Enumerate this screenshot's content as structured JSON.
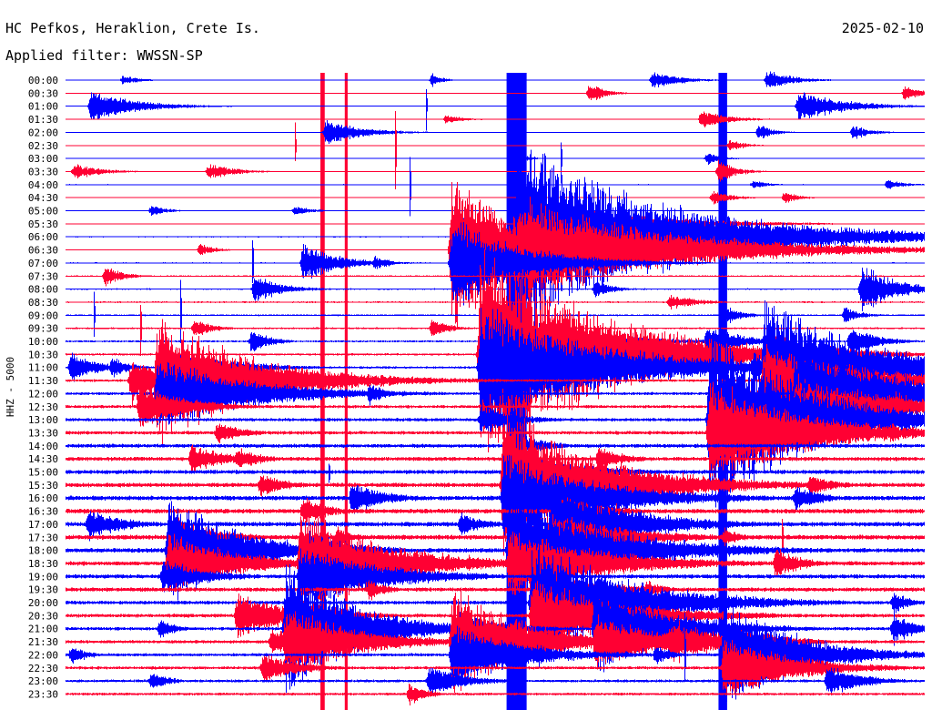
{
  "header": {
    "station": "HC Pefkos, Heraklion, Crete Is.",
    "filter": "Applied filter: WWSSN-SP",
    "date": "2025-02-10"
  },
  "channel_label": "HHZ - 5000",
  "chart_data": {
    "type": "line",
    "title": "HC Pefkos, Heraklion, Crete Is.",
    "subtitle": "Applied filter: WWSSN-SP",
    "date": "2025-02-10",
    "ylabel": "HHZ - 5000",
    "colors": [
      "#0000ff",
      "#ff0033"
    ],
    "rows": [
      "00:00",
      "00:30",
      "01:00",
      "01:30",
      "02:00",
      "02:30",
      "03:00",
      "03:30",
      "04:00",
      "04:30",
      "05:00",
      "05:30",
      "06:00",
      "06:30",
      "07:00",
      "07:30",
      "08:00",
      "08:30",
      "09:00",
      "09:30",
      "10:00",
      "10:30",
      "11:00",
      "11:30",
      "12:00",
      "12:30",
      "13:00",
      "13:30",
      "14:00",
      "14:30",
      "15:00",
      "15:30",
      "16:00",
      "16:30",
      "17:00",
      "17:30",
      "18:00",
      "18:30",
      "19:00",
      "19:30",
      "20:00",
      "20:30",
      "21:00",
      "21:30",
      "22:00",
      "22:30",
      "23:00",
      "23:30"
    ],
    "x_range_minutes": [
      0,
      30
    ],
    "noise": [
      0.5,
      0.5,
      0.5,
      0.5,
      0.5,
      0.5,
      0.5,
      0.5,
      0.6,
      0.6,
      0.6,
      0.6,
      0.7,
      0.7,
      0.8,
      0.8,
      0.9,
      1.0,
      1.0,
      1.1,
      1.2,
      1.3,
      1.4,
      1.5,
      1.7,
      1.8,
      2.0,
      2.1,
      2.3,
      2.4,
      2.5,
      2.6,
      2.7,
      2.8,
      2.8,
      2.8,
      2.7,
      2.6,
      2.5,
      2.4,
      2.3,
      2.2,
      2.0,
      2.0,
      1.9,
      1.8,
      1.7,
      1.6
    ],
    "events": [
      {
        "row": 0,
        "minute": 2.0,
        "amp": 6,
        "dur": 1.0
      },
      {
        "row": 0,
        "minute": 20.5,
        "amp": 12,
        "dur": 1.5
      },
      {
        "row": 0,
        "minute": 24.5,
        "amp": 12,
        "dur": 1.5
      },
      {
        "row": 0,
        "minute": 12.8,
        "amp": 8,
        "dur": 0.6
      },
      {
        "row": 1,
        "minute": 18.3,
        "amp": 14,
        "dur": 0.8
      },
      {
        "row": 1,
        "minute": 29.3,
        "amp": 10,
        "dur": 1.0
      },
      {
        "row": 2,
        "minute": 0.9,
        "amp": 20,
        "dur": 2.5
      },
      {
        "row": 2,
        "minute": 25.6,
        "amp": 20,
        "dur": 2.5
      },
      {
        "row": 3,
        "minute": 13.3,
        "amp": 6,
        "dur": 1.0
      },
      {
        "row": 3,
        "minute": 22.2,
        "amp": 12,
        "dur": 1.5
      },
      {
        "row": 4,
        "minute": 9.1,
        "amp": 16,
        "dur": 2.0
      },
      {
        "row": 4,
        "minute": 24.2,
        "amp": 10,
        "dur": 0.8
      },
      {
        "row": 4,
        "minute": 27.5,
        "amp": 9,
        "dur": 1.0
      },
      {
        "row": 5,
        "minute": 23.2,
        "amp": 8,
        "dur": 0.8
      },
      {
        "row": 6,
        "minute": 22.4,
        "amp": 8,
        "dur": 0.8
      },
      {
        "row": 6,
        "minute": 15.9,
        "amp": 5,
        "dur": 0.6
      },
      {
        "row": 7,
        "minute": 0.3,
        "amp": 10,
        "dur": 1.5
      },
      {
        "row": 7,
        "minute": 5.0,
        "amp": 10,
        "dur": 1.5
      },
      {
        "row": 7,
        "minute": 22.8,
        "amp": 14,
        "dur": 1.0
      },
      {
        "row": 8,
        "minute": 28.7,
        "amp": 6,
        "dur": 1.0
      },
      {
        "row": 8,
        "minute": 24.0,
        "amp": 6,
        "dur": 0.8
      },
      {
        "row": 9,
        "minute": 22.6,
        "amp": 10,
        "dur": 1.0
      },
      {
        "row": 9,
        "minute": 25.1,
        "amp": 8,
        "dur": 0.8
      },
      {
        "row": 10,
        "minute": 8.0,
        "amp": 6,
        "dur": 1.0
      },
      {
        "row": 10,
        "minute": 3.0,
        "amp": 8,
        "dur": 0.8
      },
      {
        "row": 12,
        "minute": 14.2,
        "amp": 8,
        "dur": 0.8
      },
      {
        "row": 13,
        "minute": 4.7,
        "amp": 8,
        "dur": 0.8
      },
      {
        "row": 13,
        "minute": 21.7,
        "amp": 8,
        "dur": 1.0
      },
      {
        "row": 14,
        "minute": 18.3,
        "amp": 8,
        "dur": 0.8
      },
      {
        "row": 14,
        "minute": 10.8,
        "amp": 10,
        "dur": 0.8
      },
      {
        "row": 14,
        "minute": 8.3,
        "amp": 24,
        "dur": 2.0
      },
      {
        "row": 15,
        "minute": 1.4,
        "amp": 12,
        "dur": 1.0
      },
      {
        "row": 16,
        "minute": 6.6,
        "amp": 18,
        "dur": 1.5
      },
      {
        "row": 16,
        "minute": 18.5,
        "amp": 12,
        "dur": 1.0
      },
      {
        "row": 16,
        "minute": 27.8,
        "amp": 30,
        "dur": 2.0
      },
      {
        "row": 17,
        "minute": 21.1,
        "amp": 10,
        "dur": 1.5
      },
      {
        "row": 18,
        "minute": 23.0,
        "amp": 12,
        "dur": 1.0
      },
      {
        "row": 18,
        "minute": 27.2,
        "amp": 10,
        "dur": 1.0
      },
      {
        "row": 19,
        "minute": 4.5,
        "amp": 12,
        "dur": 1.0
      },
      {
        "row": 19,
        "minute": 12.8,
        "amp": 12,
        "dur": 1.0
      },
      {
        "row": 20,
        "minute": 6.5,
        "amp": 16,
        "dur": 1.0
      },
      {
        "row": 20,
        "minute": 22.4,
        "amp": 20,
        "dur": 2.0
      },
      {
        "row": 20,
        "minute": 27.4,
        "amp": 20,
        "dur": 1.5
      },
      {
        "row": 22,
        "minute": 0.2,
        "amp": 18,
        "dur": 1.5
      },
      {
        "row": 22,
        "minute": 1.6,
        "amp": 14,
        "dur": 1.0
      },
      {
        "row": 22,
        "minute": 24.0,
        "amp": 20,
        "dur": 2.5
      },
      {
        "row": 23,
        "minute": 2.3,
        "amp": 30,
        "dur": 2.0
      },
      {
        "row": 24,
        "minute": 10.6,
        "amp": 14,
        "dur": 1.0
      },
      {
        "row": 24,
        "minute": 27.5,
        "amp": 30,
        "dur": 2.0
      },
      {
        "row": 25,
        "minute": 2.6,
        "amp": 30,
        "dur": 2.5
      },
      {
        "row": 25,
        "minute": 29.0,
        "amp": 20,
        "dur": 1.5
      },
      {
        "row": 26,
        "minute": 14.5,
        "amp": 20,
        "dur": 2.0
      },
      {
        "row": 27,
        "minute": 5.3,
        "amp": 14,
        "dur": 1.5
      },
      {
        "row": 27,
        "minute": 28.8,
        "amp": 14,
        "dur": 1.0
      },
      {
        "row": 28,
        "minute": 16.0,
        "amp": 14,
        "dur": 1.5
      },
      {
        "row": 29,
        "minute": 4.4,
        "amp": 18,
        "dur": 2.0
      },
      {
        "row": 29,
        "minute": 6.0,
        "amp": 14,
        "dur": 1.5
      },
      {
        "row": 29,
        "minute": 18.6,
        "amp": 16,
        "dur": 1.5
      },
      {
        "row": 31,
        "minute": 6.8,
        "amp": 16,
        "dur": 1.5
      },
      {
        "row": 31,
        "minute": 26.0,
        "amp": 14,
        "dur": 1.5
      },
      {
        "row": 32,
        "minute": 10.0,
        "amp": 20,
        "dur": 2.0
      },
      {
        "row": 32,
        "minute": 25.5,
        "amp": 16,
        "dur": 1.5
      },
      {
        "row": 33,
        "minute": 8.3,
        "amp": 18,
        "dur": 1.5
      },
      {
        "row": 33,
        "minute": 17.8,
        "amp": 14,
        "dur": 1.5
      },
      {
        "row": 34,
        "minute": 0.8,
        "amp": 20,
        "dur": 2.0
      },
      {
        "row": 34,
        "minute": 13.8,
        "amp": 14,
        "dur": 1.5
      },
      {
        "row": 35,
        "minute": 9.5,
        "amp": 12,
        "dur": 1.0
      },
      {
        "row": 35,
        "minute": 23.0,
        "amp": 12,
        "dur": 1.0
      },
      {
        "row": 36,
        "minute": 21.6,
        "amp": 14,
        "dur": 1.0
      },
      {
        "row": 37,
        "minute": 24.8,
        "amp": 20,
        "dur": 1.5
      },
      {
        "row": 37,
        "minute": 14.0,
        "amp": 12,
        "dur": 1.0
      },
      {
        "row": 38,
        "minute": 3.4,
        "amp": 22,
        "dur": 2.5
      },
      {
        "row": 38,
        "minute": 12.3,
        "amp": 10,
        "dur": 1.0
      },
      {
        "row": 39,
        "minute": 10.6,
        "amp": 14,
        "dur": 1.0
      },
      {
        "row": 39,
        "minute": 20.3,
        "amp": 12,
        "dur": 1.0
      },
      {
        "row": 40,
        "minute": 16.7,
        "amp": 14,
        "dur": 1.0
      },
      {
        "row": 40,
        "minute": 28.9,
        "amp": 14,
        "dur": 1.0
      },
      {
        "row": 41,
        "minute": 6.0,
        "amp": 30,
        "dur": 3.0
      },
      {
        "row": 42,
        "minute": 3.3,
        "amp": 12,
        "dur": 1.0
      },
      {
        "row": 42,
        "minute": 28.9,
        "amp": 20,
        "dur": 1.5
      },
      {
        "row": 43,
        "minute": 7.2,
        "amp": 20,
        "dur": 2.0
      },
      {
        "row": 43,
        "minute": 21.1,
        "amp": 30,
        "dur": 3.0
      },
      {
        "row": 44,
        "minute": 0.2,
        "amp": 12,
        "dur": 1.0
      },
      {
        "row": 44,
        "minute": 20.6,
        "amp": 12,
        "dur": 1.0
      },
      {
        "row": 45,
        "minute": 6.9,
        "amp": 20,
        "dur": 2.0
      },
      {
        "row": 46,
        "minute": 3.0,
        "amp": 12,
        "dur": 1.0
      },
      {
        "row": 46,
        "minute": 12.7,
        "amp": 20,
        "dur": 2.0
      },
      {
        "row": 46,
        "minute": 26.6,
        "amp": 20,
        "dur": 2.0
      },
      {
        "row": 47,
        "minute": 12.0,
        "amp": 14,
        "dur": 1.0
      }
    ],
    "quakes": [
      {
        "row": 21,
        "minute": 14.5,
        "amp": 140,
        "dur": 5.0
      },
      {
        "row": 12,
        "minute": 15.8,
        "amp": 120,
        "dur": 6.0
      },
      {
        "row": 31,
        "minute": 15.3,
        "amp": 100,
        "dur": 4.0
      },
      {
        "row": 13,
        "minute": 13.5,
        "amp": 100,
        "dur": 3.0
      },
      {
        "row": 22,
        "minute": 24.4,
        "amp": 90,
        "dur": 4.0
      },
      {
        "row": 26,
        "minute": 22.5,
        "amp": 120,
        "dur": 4.0
      },
      {
        "row": 23,
        "minute": 3.2,
        "amp": 80,
        "dur": 4.0
      },
      {
        "row": 24,
        "minute": 25.5,
        "amp": 70,
        "dur": 4.0
      },
      {
        "row": 34,
        "minute": 17.0,
        "amp": 60,
        "dur": 3.0
      },
      {
        "row": 36,
        "minute": 15.5,
        "amp": 80,
        "dur": 4.0
      },
      {
        "row": 36,
        "minute": 3.6,
        "amp": 70,
        "dur": 3.0
      },
      {
        "row": 37,
        "minute": 8.2,
        "amp": 70,
        "dur": 3.5
      },
      {
        "row": 42,
        "minute": 7.7,
        "amp": 80,
        "dur": 3.0
      },
      {
        "row": 42,
        "minute": 18.5,
        "amp": 60,
        "dur": 3.0
      },
      {
        "row": 44,
        "minute": 23.0,
        "amp": 70,
        "dur": 3.0
      },
      {
        "row": 43,
        "minute": 13.5,
        "amp": 70,
        "dur": 3.0
      },
      {
        "row": 40,
        "minute": 16.3,
        "amp": 80,
        "dur": 4.0
      }
    ],
    "spikes": [
      {
        "row": 5,
        "minute": 8.0,
        "amp": 30
      },
      {
        "row": 5,
        "minute": 11.5,
        "amp": 80
      },
      {
        "row": 8,
        "minute": 12.0,
        "amp": 40
      },
      {
        "row": 14,
        "minute": 6.5,
        "amp": 50
      },
      {
        "row": 6,
        "minute": 17.3,
        "amp": 30
      },
      {
        "row": 18,
        "minute": 4.0,
        "amp": 60
      },
      {
        "row": 18,
        "minute": 1.0,
        "amp": 30
      },
      {
        "row": 30,
        "minute": 9.2,
        "amp": 25
      },
      {
        "row": 35,
        "minute": 25.0,
        "amp": 40
      },
      {
        "row": 2,
        "minute": 12.6,
        "amp": 30
      },
      {
        "row": 27,
        "minute": 24.3,
        "amp": 30
      },
      {
        "row": 19,
        "minute": 2.6,
        "amp": 40
      },
      {
        "row": 26,
        "minute": 23.3,
        "amp": 40
      },
      {
        "row": 44,
        "minute": 21.6,
        "amp": 50
      }
    ],
    "saturation": [
      {
        "color": "#0000ff",
        "x_start_minute": 15.4,
        "x_end_minute": 16.1,
        "from_row": 0,
        "to_row": 47
      },
      {
        "color": "#0000ff",
        "x_start_minute": 22.8,
        "x_end_minute": 23.1,
        "from_row": 0,
        "to_row": 47
      },
      {
        "color": "#ff0033",
        "x_start_minute": 8.9,
        "x_end_minute": 9.05,
        "from_row": 0,
        "to_row": 47
      },
      {
        "color": "#ff0033",
        "x_start_minute": 9.75,
        "x_end_minute": 9.85,
        "from_row": 0,
        "to_row": 47
      }
    ]
  }
}
